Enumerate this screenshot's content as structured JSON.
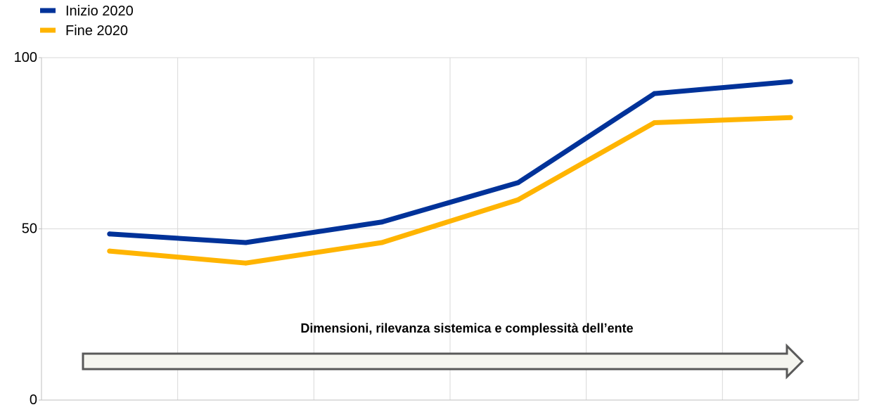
{
  "chart_data": {
    "type": "line",
    "x": [
      1,
      2,
      3,
      4,
      5,
      6
    ],
    "series": [
      {
        "name": "Inizio 2020",
        "color": "#003299",
        "values": [
          48.5,
          46,
          52,
          63.5,
          89.5,
          93
        ]
      },
      {
        "name": "Fine 2020",
        "color": "#FFB400",
        "values": [
          43.5,
          40,
          46,
          58.5,
          81,
          82.5
        ]
      }
    ],
    "ylim": [
      0,
      100
    ],
    "yticks": [
      "0",
      "50",
      "100"
    ],
    "grid": true,
    "legend": "top-left",
    "annotation": "Dimensioni, rilevanza sistemica e complessità dell’ente",
    "annotation_arrow_color": "#F5F5EF",
    "title": "",
    "xlabel": "",
    "ylabel": ""
  }
}
